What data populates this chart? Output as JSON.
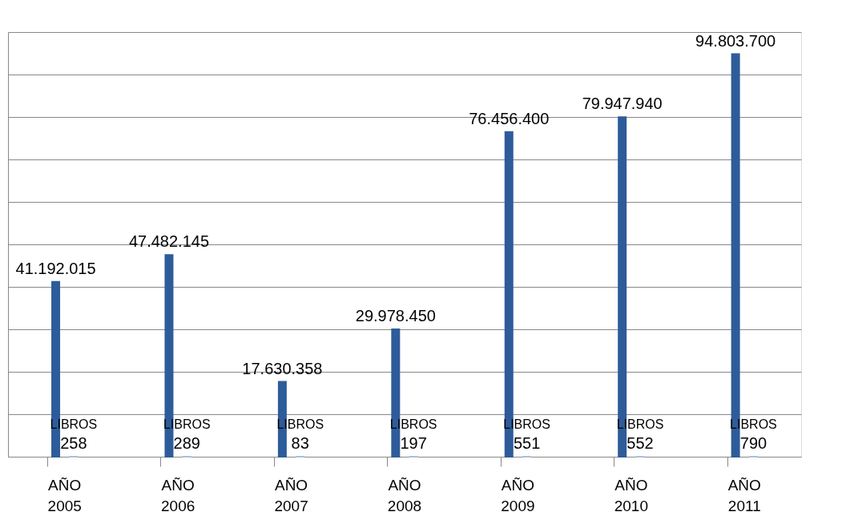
{
  "chart_data": {
    "type": "bar",
    "categories": [
      "AÑO 2005",
      "AÑO 2006",
      "AÑO 2007",
      "AÑO 2008",
      "AÑO 2009",
      "AÑO 2010",
      "AÑO 2011"
    ],
    "series": [
      {
        "color": "#2e5c9a",
        "values": [
          41192015,
          47482145,
          17630358,
          29978450,
          76456400,
          79947940,
          94803700
        ],
        "value_labels": [
          "41.192.015",
          "47.482.145",
          "17.630.358",
          "29.978.450",
          "76.456.400",
          "79.947.940",
          "94.803.700"
        ]
      },
      {
        "name": "LIBROS",
        "color": "#a9bfdc",
        "values": [
          258,
          289,
          83,
          197,
          551,
          552,
          790
        ],
        "value_labels": [
          "258",
          "289",
          "83",
          "197",
          "551",
          "552",
          "790"
        ]
      }
    ],
    "ylim": [
      0,
      100000000
    ],
    "yticks": [
      {
        "value": 0,
        "label": null
      },
      {
        "value": 10000000,
        "label": null
      },
      {
        "value": 20000000,
        "label": null
      },
      {
        "value": 30000000,
        "label": null
      },
      {
        "value": 40000000,
        "label": null
      },
      {
        "value": 50000000,
        "label": null
      },
      {
        "value": 60000000,
        "label": null
      },
      {
        "value": 70000000,
        "label": null
      },
      {
        "value": 80000000,
        "label": null
      },
      {
        "value": 90000000,
        "label": null
      },
      {
        "value": 100000000,
        "label": null
      }
    ],
    "grid": "y",
    "tick_labels": "x"
  }
}
